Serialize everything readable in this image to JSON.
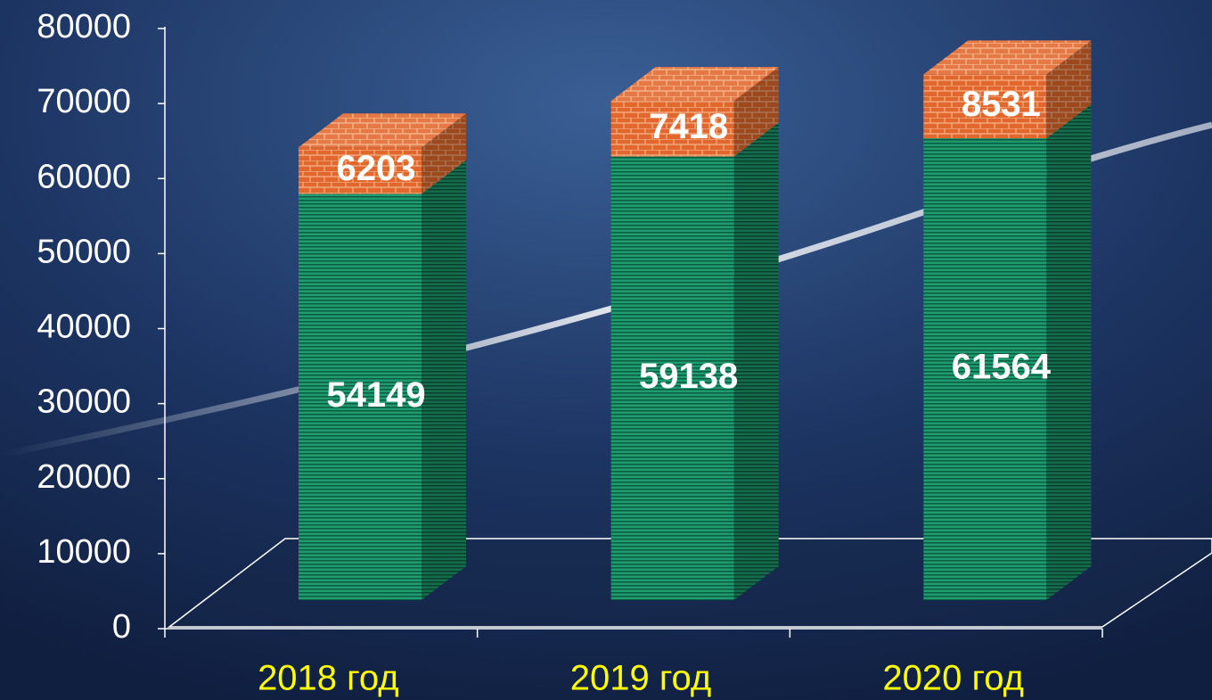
{
  "chart_data": {
    "type": "bar",
    "stacked": true,
    "categories": [
      "2018 год",
      "2019 год",
      "2020 год"
    ],
    "series": [
      {
        "color": "#1f9c6e",
        "values": [
          54149,
          59138,
          61564
        ]
      },
      {
        "color": "#e2672c",
        "values": [
          6203,
          7418,
          8531
        ]
      }
    ],
    "ylim": [
      0,
      80000
    ],
    "yticks": [
      0,
      10000,
      20000,
      30000,
      40000,
      50000,
      60000,
      70000,
      80000
    ],
    "grid": false
  }
}
